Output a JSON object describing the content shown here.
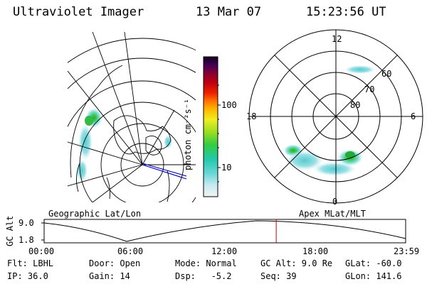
{
  "header": {
    "instrument": "Ultraviolet Imager",
    "date": "13 Mar 07",
    "time": "15:23:56 UT"
  },
  "colorbar": {
    "unit_label": "photon cm⁻²s⁻¹",
    "ticks": [
      "100",
      "10"
    ]
  },
  "polar_plot": {
    "mlt_labels": [
      "12",
      "18",
      "6",
      "0"
    ],
    "lat_labels": [
      "60",
      "70",
      "80"
    ]
  },
  "timeline": {
    "left_title": "Geographic Lat/Lon",
    "right_title": "Apex MLat/MLT",
    "y_axis_label": "GC Alt",
    "y_ticks": [
      "9.0",
      "1.8"
    ],
    "x_ticks": [
      "00:00",
      "06:00",
      "12:00",
      "18:00",
      "23:59"
    ],
    "current_time_fraction": 0.642
  },
  "status": {
    "row1": {
      "filter": "Flt: LBHL",
      "door": "Door: Open",
      "mode": "Mode: Normal",
      "gc_alt": "GC Alt: 9.0 Re",
      "glat": "GLat: -60.0"
    },
    "row2": {
      "ip": "IP: 36.0",
      "gain": "Gain: 14",
      "dsp": "Dsp:   -5.2",
      "seq": "Seq: 39",
      "glon": "GLon: 141.6"
    }
  },
  "colors": {
    "current_time_marker": "#cc0000",
    "coast_line": "#0000aa"
  }
}
